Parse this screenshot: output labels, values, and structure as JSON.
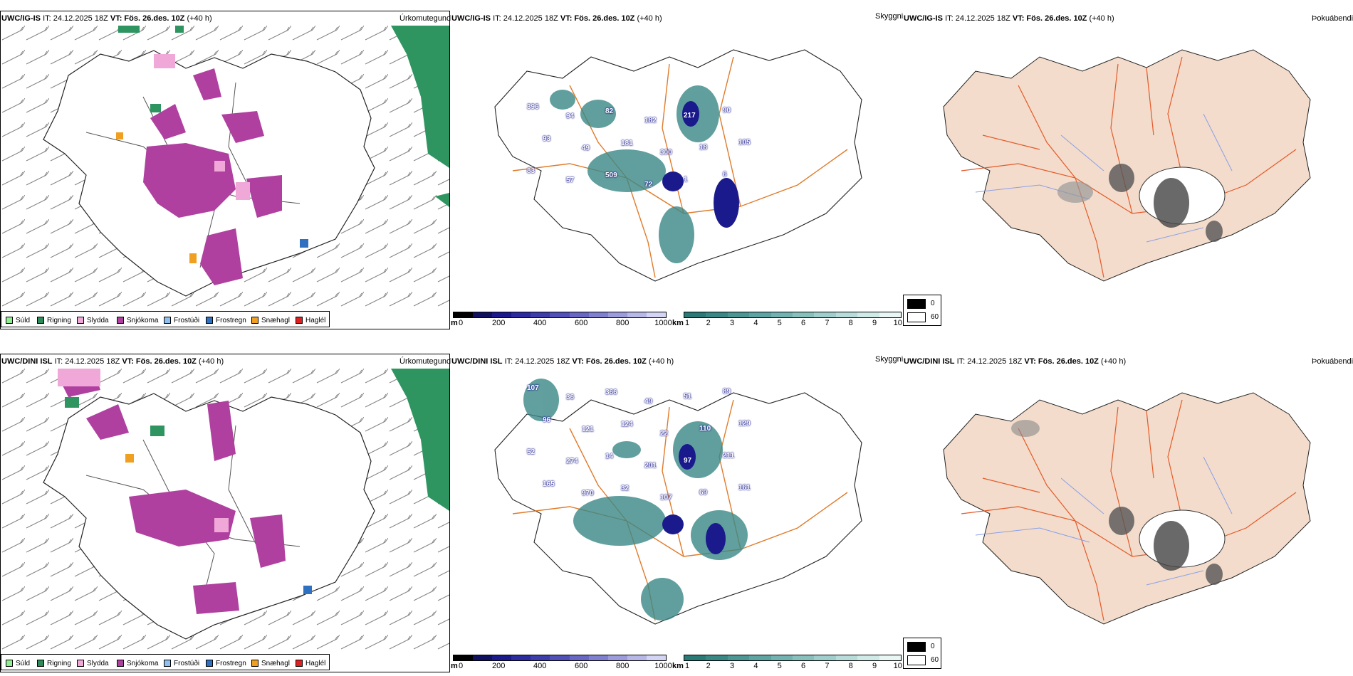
{
  "rows": [
    {
      "model": "UWC/IG-IS",
      "it": "IT: 24.12.2025 18Z",
      "vt_label": "VT:",
      "vt": "Fös. 26.des. 10Z",
      "lead": "(+40 h)"
    },
    {
      "model": "UWC/DINI ISL",
      "it": "IT: 24.12.2025 18Z",
      "vt_label": "VT:",
      "vt": "Fös. 26.des. 10Z",
      "lead": "(+40 h)"
    }
  ],
  "panels": {
    "precip": {
      "title": "Úrkomutegund"
    },
    "cloud": {
      "title": "Skyggni"
    },
    "fog": {
      "title": "Þokuábendi"
    }
  },
  "precip_legend": [
    {
      "label": "Súld",
      "color": "#90ee90"
    },
    {
      "label": "Rigning",
      "color": "#2e8b57"
    },
    {
      "label": "Slydda",
      "color": "#f0a8d8"
    },
    {
      "label": "Snjókoma",
      "color": "#b040a0"
    },
    {
      "label": "Frostúði",
      "color": "#90c0f0"
    },
    {
      "label": "Frostregn",
      "color": "#3070c0"
    },
    {
      "label": "Snæhagl",
      "color": "#f0a020"
    },
    {
      "label": "Haglél",
      "color": "#e02020"
    }
  ],
  "colorbars": {
    "ceiling": {
      "unit": "m",
      "ticks": [
        "0",
        "200",
        "400",
        "600",
        "800",
        "1000"
      ],
      "colors": [
        "#000000",
        "#101060",
        "#1a1a8c",
        "#2c2ca0",
        "#3d3dac",
        "#5050b8",
        "#6868c4",
        "#8080d0",
        "#9c9cdc",
        "#b8b8e8",
        "#d4d4f4"
      ]
    },
    "visibility": {
      "unit": "km",
      "ticks": [
        "1",
        "2",
        "3",
        "4",
        "5",
        "6",
        "7",
        "8",
        "9",
        "10"
      ],
      "colors": [
        "#2a7a78",
        "#3a8886",
        "#4c9694",
        "#5ea4a2",
        "#72b2b0",
        "#88c0be",
        "#a0cecc",
        "#b8dcda",
        "#d0eae8",
        "#e8f6f4"
      ]
    },
    "fog": {
      "values": [
        "0",
        "60"
      ],
      "colors": [
        "#000000",
        "#ffffff"
      ]
    }
  },
  "cloud_labels_top": [
    "396",
    "94",
    "82",
    "182",
    "217",
    "90",
    "93",
    "49",
    "181",
    "300",
    "18",
    "105",
    "83",
    "57",
    "509",
    "72",
    "1",
    "6"
  ],
  "cloud_labels_bottom": [
    "107",
    "36",
    "366",
    "49",
    "51",
    "89",
    "96",
    "121",
    "124",
    "22",
    "110",
    "129",
    "52",
    "274",
    "14",
    "201",
    "97",
    "211",
    "165",
    "970",
    "32",
    "107",
    "69",
    "161"
  ]
}
